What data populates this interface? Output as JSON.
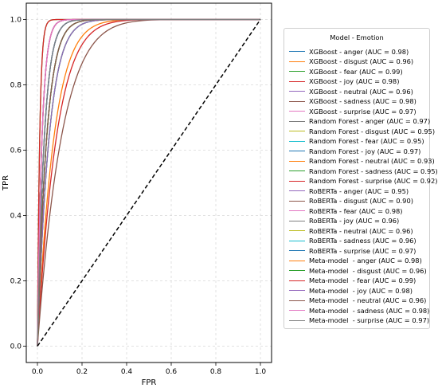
{
  "chart_data": {
    "type": "line",
    "title": "",
    "xlabel": "FPR",
    "ylabel": "TPR",
    "xlim": [
      -0.05,
      1.05
    ],
    "ylim": [
      -0.05,
      1.05
    ],
    "xticks": [
      "0.0",
      "0.2",
      "0.4",
      "0.6",
      "0.8",
      "1.0"
    ],
    "yticks": [
      "0.0",
      "0.2",
      "0.4",
      "0.6",
      "0.8",
      "1.0"
    ],
    "grid": true,
    "legend_title": "Model - Emotion",
    "legend_placement": "outside-right",
    "diagonal": {
      "x": [
        0,
        1
      ],
      "y": [
        0,
        1
      ],
      "style": "dashed",
      "color": "#000000"
    },
    "series": [
      {
        "name": "XGBoost - anger (AUC = 0.98)",
        "auc": 0.98,
        "color": "#1f77b4"
      },
      {
        "name": "XGBoost - disgust (AUC = 0.96)",
        "auc": 0.96,
        "color": "#ff7f0e"
      },
      {
        "name": "XGBoost - fear (AUC = 0.99)",
        "auc": 0.99,
        "color": "#2ca02c"
      },
      {
        "name": "XGBoost - joy (AUC = 0.98)",
        "auc": 0.98,
        "color": "#d62728"
      },
      {
        "name": "XGBoost - neutral (AUC = 0.96)",
        "auc": 0.96,
        "color": "#9467bd"
      },
      {
        "name": "XGBoost - sadness (AUC = 0.98)",
        "auc": 0.98,
        "color": "#8c564b"
      },
      {
        "name": "XGBoost - surprise (AUC = 0.97)",
        "auc": 0.97,
        "color": "#e377c2"
      },
      {
        "name": "Random Forest - anger (AUC = 0.97)",
        "auc": 0.97,
        "color": "#7f7f7f"
      },
      {
        "name": "Random Forest - disgust (AUC = 0.95)",
        "auc": 0.95,
        "color": "#bcbd22"
      },
      {
        "name": "Random Forest - fear (AUC = 0.95)",
        "auc": 0.95,
        "color": "#17becf"
      },
      {
        "name": "Random Forest - joy (AUC = 0.97)",
        "auc": 0.97,
        "color": "#1f77b4"
      },
      {
        "name": "Random Forest - neutral (AUC = 0.93)",
        "auc": 0.93,
        "color": "#ff7f0e"
      },
      {
        "name": "Random Forest - sadness (AUC = 0.95)",
        "auc": 0.95,
        "color": "#2ca02c"
      },
      {
        "name": "Random Forest - surprise (AUC = 0.92)",
        "auc": 0.92,
        "color": "#d62728"
      },
      {
        "name": "RoBERTa - anger (AUC = 0.95)",
        "auc": 0.95,
        "color": "#9467bd"
      },
      {
        "name": "RoBERTa - disgust (AUC = 0.90)",
        "auc": 0.9,
        "color": "#8c564b"
      },
      {
        "name": "RoBERTa - fear (AUC = 0.98)",
        "auc": 0.98,
        "color": "#e377c2"
      },
      {
        "name": "RoBERTa - joy (AUC = 0.96)",
        "auc": 0.96,
        "color": "#7f7f7f"
      },
      {
        "name": "RoBERTa - neutral (AUC = 0.96)",
        "auc": 0.96,
        "color": "#bcbd22"
      },
      {
        "name": "RoBERTa - sadness (AUC = 0.96)",
        "auc": 0.96,
        "color": "#17becf"
      },
      {
        "name": "RoBERTa - surprise (AUC = 0.97)",
        "auc": 0.97,
        "color": "#1f77b4"
      },
      {
        "name": "Meta-model  - anger (AUC = 0.98)",
        "auc": 0.98,
        "color": "#ff7f0e"
      },
      {
        "name": "Meta-model  - disgust (AUC = 0.96)",
        "auc": 0.96,
        "color": "#2ca02c"
      },
      {
        "name": "Meta-model  - fear (AUC = 0.99)",
        "auc": 0.99,
        "color": "#d62728"
      },
      {
        "name": "Meta-model  - joy (AUC = 0.98)",
        "auc": 0.98,
        "color": "#9467bd"
      },
      {
        "name": "Meta-model  - neutral (AUC = 0.96)",
        "auc": 0.96,
        "color": "#8c564b"
      },
      {
        "name": "Meta-model  - sadness (AUC = 0.98)",
        "auc": 0.98,
        "color": "#e377c2"
      },
      {
        "name": "Meta-model  - surprise (AUC = 0.97)",
        "auc": 0.97,
        "color": "#7f7f7f"
      }
    ]
  }
}
